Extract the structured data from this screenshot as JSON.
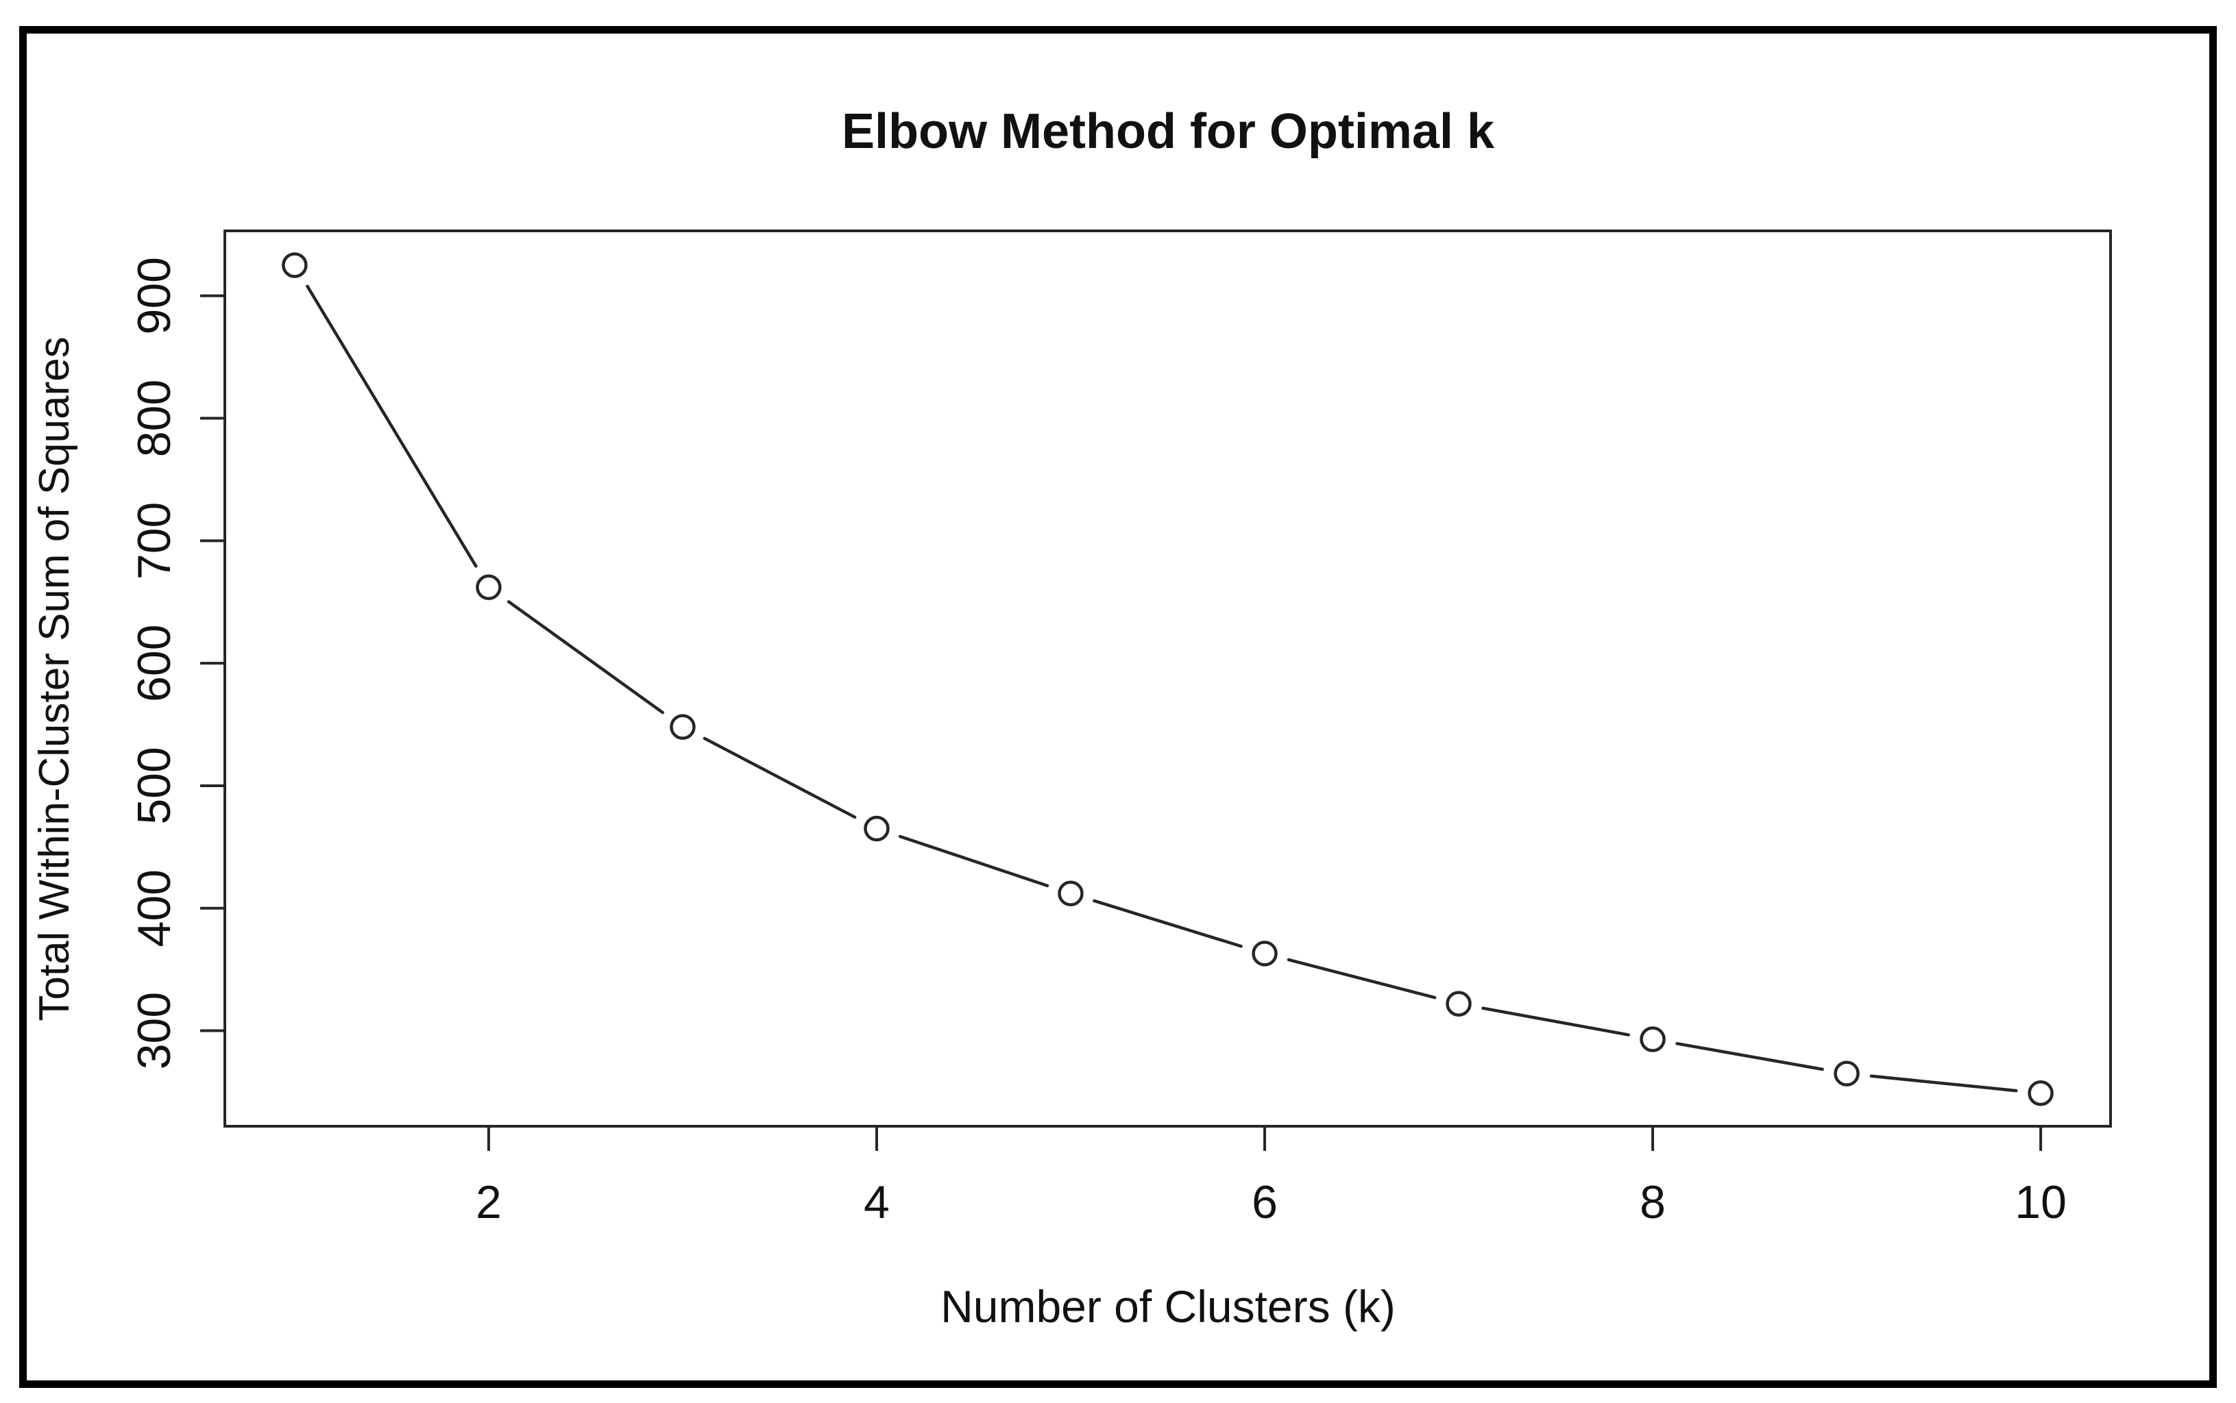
{
  "chart_data": {
    "type": "line",
    "title": "Elbow Method for Optimal k",
    "xlabel": "Number of Clusters (k)",
    "ylabel": "Total Within-Cluster Sum of Squares",
    "x": [
      1,
      2,
      3,
      4,
      5,
      6,
      7,
      8,
      9,
      10
    ],
    "values": [
      925,
      662,
      548,
      465,
      412,
      363,
      322,
      293,
      265,
      249
    ],
    "x_ticks": [
      2,
      4,
      6,
      8,
      10
    ],
    "y_ticks": [
      300,
      400,
      500,
      600,
      700,
      800,
      900
    ],
    "xlim": [
      0.64,
      10.36
    ],
    "ylim": [
      222,
      953
    ],
    "marker": "open-circle",
    "line_style": "solid",
    "grid": false,
    "legend": null,
    "colors": {
      "line": "#262626",
      "frame": "#262626",
      "marker_fill": "#ffffff",
      "text": "#111111",
      "border": "#000000",
      "background": "#ffffff"
    }
  }
}
